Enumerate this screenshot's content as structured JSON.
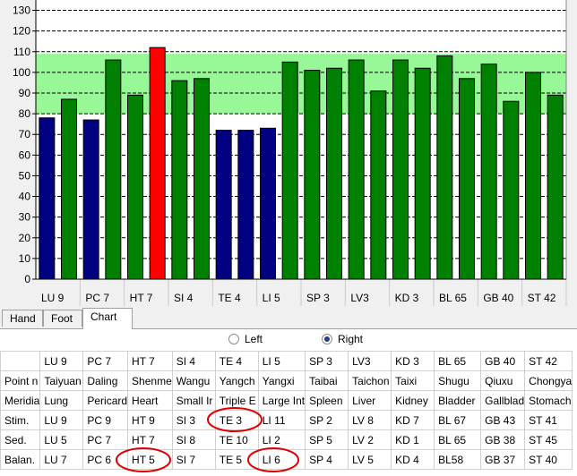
{
  "chart_data": {
    "type": "bar",
    "ylim": [
      0,
      135
    ],
    "yticks": [
      0,
      10,
      20,
      30,
      40,
      50,
      60,
      70,
      80,
      90,
      100,
      110,
      120,
      130
    ],
    "normal_band": [
      80,
      109
    ],
    "category_labels": [
      "LU 9",
      "PC 7",
      "HT 7",
      "SI 4",
      "TE 4",
      "LI 5",
      "SP 3",
      "LV3",
      "KD 3",
      "BL 65",
      "GB 40",
      "ST 42"
    ],
    "bars": [
      {
        "value": 78,
        "color": "#000080"
      },
      {
        "value": 87,
        "color": "#008000"
      },
      {
        "value": 77,
        "color": "#000080"
      },
      {
        "value": 106,
        "color": "#008000"
      },
      {
        "value": 89,
        "color": "#008000"
      },
      {
        "value": 112,
        "color": "#ff0000"
      },
      {
        "value": 96,
        "color": "#008000"
      },
      {
        "value": 97,
        "color": "#008000"
      },
      {
        "value": 72,
        "color": "#000080"
      },
      {
        "value": 72,
        "color": "#000080"
      },
      {
        "value": 73,
        "color": "#000080"
      },
      {
        "value": 105,
        "color": "#008000"
      },
      {
        "value": 101,
        "color": "#008000"
      },
      {
        "value": 102,
        "color": "#008000"
      },
      {
        "value": 106,
        "color": "#008000"
      },
      {
        "value": 91,
        "color": "#008000"
      },
      {
        "value": 106,
        "color": "#008000"
      },
      {
        "value": 102,
        "color": "#008000"
      },
      {
        "value": 108,
        "color": "#008000"
      },
      {
        "value": 97,
        "color": "#008000"
      },
      {
        "value": 104,
        "color": "#008000"
      },
      {
        "value": 86,
        "color": "#008000"
      },
      {
        "value": 100,
        "color": "#008000"
      },
      {
        "value": 89,
        "color": "#008000"
      }
    ],
    "band_color": "#98f898",
    "grid": true
  },
  "tabs": [
    "Hand",
    "Foot",
    "Chart"
  ],
  "side": {
    "left": "Left",
    "right": "Right",
    "selected": "Right"
  },
  "table": {
    "header": [
      "LU 9",
      "PC 7",
      "HT 7",
      "SI 4",
      "TE 4",
      "LI 5",
      "SP 3",
      "LV3",
      "KD 3",
      "BL 65",
      "GB 40",
      "ST 42"
    ],
    "rows": [
      {
        "label": "Point n",
        "cells": [
          "Taiyuan",
          "Daling",
          "Shenme",
          "Wangu",
          "Yangch",
          "Yangxi",
          "Taibai",
          "Taichon",
          "Taixi",
          "Shugu",
          "Qiuxu",
          "Chongya"
        ]
      },
      {
        "label": "Meridia",
        "cells": [
          "Lung",
          "Pericard",
          "Heart",
          "Small Ir",
          "Triple E",
          "Large Int",
          "Spleen",
          "Liver",
          "Kidney",
          "Bladder",
          "Gallblad",
          "Stomach"
        ]
      },
      {
        "label": "Stim.",
        "cells": [
          "LU 9",
          "PC 9",
          "HT 9",
          "SI 3",
          "TE 3",
          "LI 11",
          "SP 2",
          "LV 8",
          "KD 7",
          "BL 67",
          "GB 43",
          "ST 41"
        ]
      },
      {
        "label": "Sed.",
        "cells": [
          "LU 5",
          "PC 7",
          "HT 7",
          "SI 8",
          "TE 10",
          "LI 2",
          "SP 5",
          "LV 2",
          "KD 1",
          "BL 65",
          "GB 38",
          "ST 45"
        ]
      },
      {
        "label": "Balan.",
        "cells": [
          "LU 7",
          "PC 6",
          "HT 5",
          "SI 7",
          "TE 5",
          "LI 6",
          "SP 4",
          "LV 5",
          "KD 4",
          "BL58",
          "GB 37",
          "ST 40"
        ]
      }
    ]
  },
  "highlight_color": "#e00000"
}
